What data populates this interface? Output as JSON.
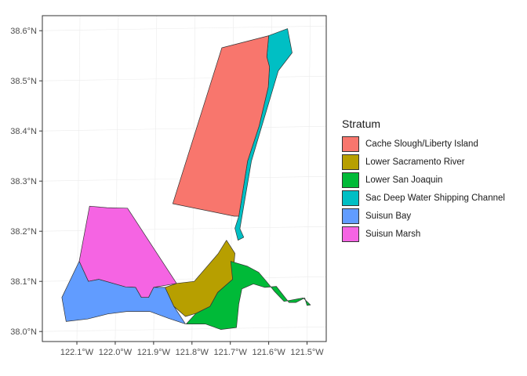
{
  "chart_data": {
    "type": "map",
    "legend": {
      "title": "Stratum",
      "placement": "right",
      "entries": [
        {
          "name": "Cache Slough/Liberty Island",
          "color": "#F8766D"
        },
        {
          "name": "Lower Sacramento River",
          "color": "#B79F00"
        },
        {
          "name": "Lower San Joaquin",
          "color": "#00BA38"
        },
        {
          "name": "Sac Deep Water Shipping Channel",
          "color": "#00BFC4"
        },
        {
          "name": "Suisun Bay",
          "color": "#619CFF"
        },
        {
          "name": "Suisun Marsh",
          "color": "#F564E3"
        }
      ]
    },
    "x_ticks": [
      "122.1°W",
      "122.0°W",
      "121.9°W",
      "121.8°W",
      "121.7°W",
      "121.6°W",
      "121.5°W"
    ],
    "y_ticks": [
      "38.0°N",
      "38.1°N",
      "38.2°N",
      "38.3°N",
      "38.4°N",
      "38.5°N",
      "38.6°N"
    ],
    "x_tick_values": [
      -122.1,
      -122.0,
      -121.9,
      -121.8,
      -121.7,
      -121.6,
      -121.5
    ],
    "y_tick_values": [
      38.0,
      38.1,
      38.2,
      38.3,
      38.4,
      38.5,
      38.6
    ],
    "xlim": [
      -122.19,
      -121.45
    ],
    "ylim": [
      37.98,
      38.63
    ],
    "grid": true,
    "regions": [
      {
        "name": "Suisun Marsh",
        "coords": [
          [
            -122.094,
            38.14
          ],
          [
            -122.067,
            38.25
          ],
          [
            -122.022,
            38.247
          ],
          [
            -121.968,
            38.246
          ],
          [
            -121.84,
            38.096
          ],
          [
            -121.9,
            38.088
          ],
          [
            -121.913,
            38.068
          ],
          [
            -121.932,
            38.068
          ],
          [
            -121.947,
            38.088
          ],
          [
            -121.974,
            38.089
          ],
          [
            -122.043,
            38.104
          ],
          [
            -122.07,
            38.1
          ]
        ]
      },
      {
        "name": "Suisun Bay",
        "coords": [
          [
            -122.094,
            38.14
          ],
          [
            -122.07,
            38.1
          ],
          [
            -122.043,
            38.104
          ],
          [
            -121.974,
            38.089
          ],
          [
            -121.947,
            38.088
          ],
          [
            -121.932,
            38.068
          ],
          [
            -121.913,
            38.068
          ],
          [
            -121.9,
            38.088
          ],
          [
            -121.87,
            38.088
          ],
          [
            -121.847,
            38.05
          ],
          [
            -121.817,
            38.015
          ],
          [
            -121.86,
            38.026
          ],
          [
            -121.91,
            38.04
          ],
          [
            -121.97,
            38.04
          ],
          [
            -122.02,
            38.035
          ],
          [
            -122.072,
            38.025
          ],
          [
            -122.128,
            38.02
          ],
          [
            -122.139,
            38.068
          ]
        ]
      },
      {
        "name": "Lower Sacramento River",
        "coords": [
          [
            -121.87,
            38.088
          ],
          [
            -121.84,
            38.096
          ],
          [
            -121.794,
            38.1
          ],
          [
            -121.732,
            38.155
          ],
          [
            -121.71,
            38.182
          ],
          [
            -121.688,
            38.156
          ],
          [
            -121.694,
            38.104
          ],
          [
            -121.733,
            38.078
          ],
          [
            -121.753,
            38.05
          ],
          [
            -121.79,
            38.036
          ],
          [
            -121.817,
            38.03
          ],
          [
            -121.847,
            38.05
          ]
        ]
      },
      {
        "name": "Lower San Joaquin",
        "coords": [
          [
            -121.699,
            38.14
          ],
          [
            -121.655,
            38.13
          ],
          [
            -121.626,
            38.118
          ],
          [
            -121.606,
            38.1
          ],
          [
            -121.585,
            38.08
          ],
          [
            -121.56,
            38.06
          ],
          [
            -121.51,
            38.067
          ],
          [
            -121.491,
            38.053
          ],
          [
            -121.5,
            38.052
          ],
          [
            -121.506,
            38.067
          ],
          [
            -121.529,
            38.058
          ],
          [
            -121.547,
            38.058
          ],
          [
            -121.58,
            38.09
          ],
          [
            -121.61,
            38.088
          ],
          [
            -121.64,
            38.095
          ],
          [
            -121.67,
            38.085
          ],
          [
            -121.678,
            38.055
          ],
          [
            -121.684,
            38.008
          ],
          [
            -121.725,
            38.004
          ],
          [
            -121.765,
            38.015
          ],
          [
            -121.815,
            38.015
          ],
          [
            -121.79,
            38.036
          ],
          [
            -121.753,
            38.05
          ],
          [
            -121.733,
            38.078
          ],
          [
            -121.694,
            38.104
          ]
        ]
      },
      {
        "name": "Sac Deep Water Shipping Channel",
        "coords": [
          [
            -121.6,
            38.59
          ],
          [
            -121.551,
            38.604
          ],
          [
            -121.539,
            38.556
          ],
          [
            -121.575,
            38.52
          ],
          [
            -121.645,
            38.34
          ],
          [
            -121.675,
            38.205
          ],
          [
            -121.665,
            38.188
          ],
          [
            -121.68,
            38.182
          ],
          [
            -121.688,
            38.206
          ],
          [
            -121.678,
            38.23
          ],
          [
            -121.655,
            38.34
          ],
          [
            -121.625,
            38.41
          ],
          [
            -121.601,
            38.488
          ],
          [
            -121.598,
            38.528
          ],
          [
            -121.605,
            38.548
          ]
        ]
      },
      {
        "name": "Cache Slough/Liberty Island",
        "coords": [
          [
            -121.85,
            38.255
          ],
          [
            -121.722,
            38.566
          ],
          [
            -121.6,
            38.59
          ],
          [
            -121.605,
            38.548
          ],
          [
            -121.598,
            38.528
          ],
          [
            -121.601,
            38.488
          ],
          [
            -121.625,
            38.41
          ],
          [
            -121.655,
            38.34
          ],
          [
            -121.678,
            38.23
          ],
          [
            -121.69,
            38.23
          ]
        ]
      }
    ]
  }
}
